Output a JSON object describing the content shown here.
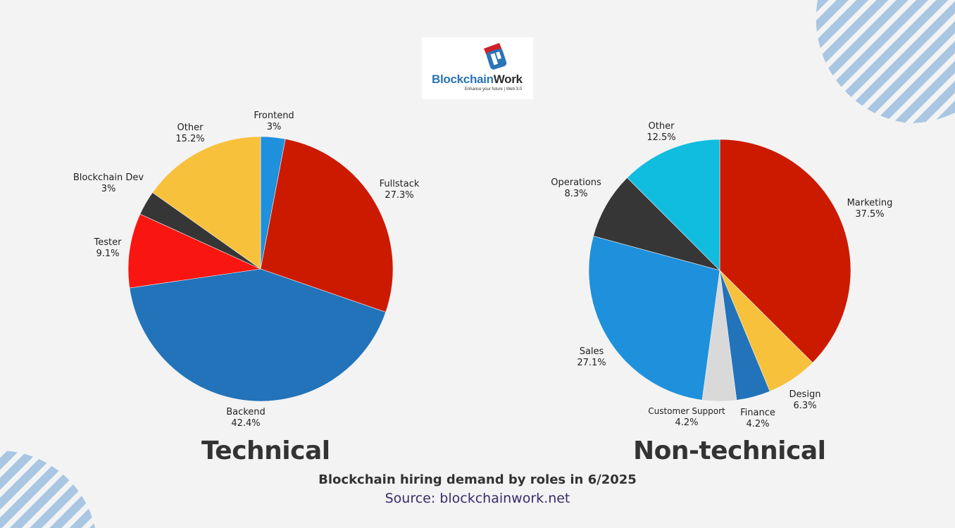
{
  "logo": {
    "brand_part1": "Blockchain",
    "brand_part2": "Work",
    "tagline": "Enhance your future | Web 3.0",
    "icon": "blockchainwork-logo-icon"
  },
  "caption": {
    "title": "Blockchain hiring demand by roles in 6/2025",
    "source": "Source: blockchainwork.net"
  },
  "colors": {
    "background": "#f3f3f3",
    "decor_stripes": "#a9c6e2",
    "text_dark": "#333333",
    "source_text": "#3a2a6a"
  },
  "chart_data": [
    {
      "type": "pie",
      "title": "Technical",
      "start_angle": "12 o'clock",
      "direction": "clockwise",
      "unit": "%",
      "slices": [
        {
          "label": "Frontend",
          "value": 3,
          "display": "3%",
          "color": "#1e90dc"
        },
        {
          "label": "Fullstack",
          "value": 27.3,
          "display": "27.3%",
          "color": "#cc1a00"
        },
        {
          "label": "Backend",
          "value": 42.4,
          "display": "42.4%",
          "color": "#2273b9"
        },
        {
          "label": "Tester",
          "value": 9.1,
          "display": "9.1%",
          "color": "#f91510"
        },
        {
          "label": "Blockchain Dev",
          "value": 3,
          "display": "3%",
          "color": "#363636"
        },
        {
          "label": "Other",
          "value": 15.2,
          "display": "15.2%",
          "color": "#f8c13c"
        }
      ]
    },
    {
      "type": "pie",
      "title": "Non-technical",
      "start_angle": "12 o'clock",
      "direction": "clockwise",
      "unit": "%",
      "slices": [
        {
          "label": "Marketing",
          "value": 37.5,
          "display": "37.5%",
          "color": "#cc1a00"
        },
        {
          "label": "Design",
          "value": 6.3,
          "display": "6.3%",
          "color": "#f8c13c"
        },
        {
          "label": "Finance",
          "value": 4.2,
          "display": "4.2%",
          "color": "#2273b9"
        },
        {
          "label": "Customer Support",
          "value": 4.2,
          "display": "4.2%",
          "color": "#d9d9d9"
        },
        {
          "label": "Sales",
          "value": 27.1,
          "display": "27.1%",
          "color": "#1e90dc"
        },
        {
          "label": "Operations",
          "value": 8.3,
          "display": "8.3%",
          "color": "#363636"
        },
        {
          "label": "Other",
          "value": 12.5,
          "display": "12.5%",
          "color": "#10bddf"
        }
      ]
    }
  ]
}
